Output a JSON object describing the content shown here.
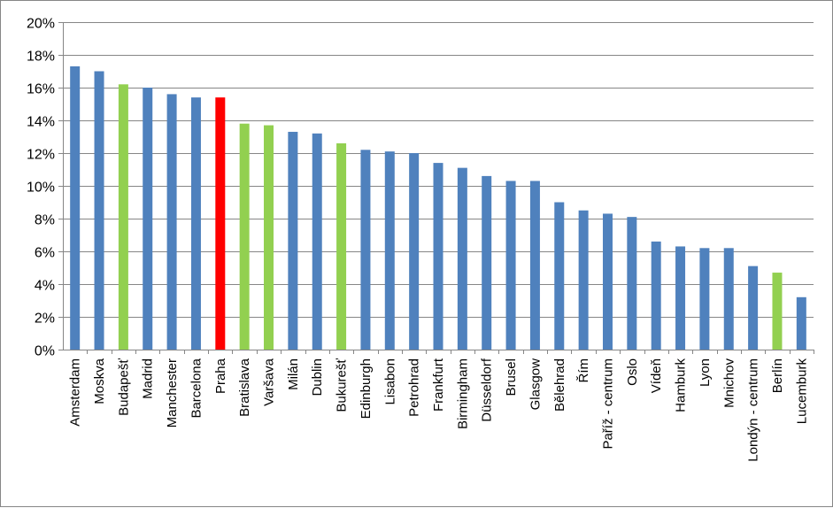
{
  "chart_data": {
    "type": "bar",
    "title": "",
    "xlabel": "",
    "ylabel": "",
    "ylim": [
      0,
      20
    ],
    "y_tick_step": 2,
    "y_tick_format": "percent",
    "grid": true,
    "legend": "none",
    "categories": [
      "Amsterdam",
      "Moskva",
      "Budapešť",
      "Madrid",
      "Manchester",
      "Barcelona",
      "Praha",
      "Bratislava",
      "Varšava",
      "Milán",
      "Dublin",
      "Bukurešť",
      "Edinburgh",
      "Lisabon",
      "Petrohrad",
      "Frankfurt",
      "Birmingham",
      "Düsseldorf",
      "Brusel",
      "Glasgow",
      "Bělehrad",
      "Řím",
      "Paříž - centrum",
      "Oslo",
      "Vídeň",
      "Hamburk",
      "Lyon",
      "Mnichov",
      "Londýn - centrum",
      "Berlín",
      "Lucemburk"
    ],
    "values": [
      17.3,
      17.0,
      16.2,
      16.0,
      15.6,
      15.4,
      15.4,
      13.8,
      13.7,
      13.3,
      13.2,
      12.6,
      12.2,
      12.1,
      12.0,
      11.4,
      11.1,
      10.6,
      10.3,
      10.3,
      9.0,
      8.5,
      8.3,
      8.1,
      6.6,
      6.3,
      6.2,
      6.2,
      5.1,
      4.7,
      3.2
    ],
    "bar_colors": [
      "#4F81BD",
      "#4F81BD",
      "#92D050",
      "#4F81BD",
      "#4F81BD",
      "#4F81BD",
      "#FF0000",
      "#92D050",
      "#92D050",
      "#4F81BD",
      "#4F81BD",
      "#92D050",
      "#4F81BD",
      "#4F81BD",
      "#4F81BD",
      "#4F81BD",
      "#4F81BD",
      "#4F81BD",
      "#4F81BD",
      "#4F81BD",
      "#4F81BD",
      "#4F81BD",
      "#4F81BD",
      "#4F81BD",
      "#4F81BD",
      "#4F81BD",
      "#4F81BD",
      "#4F81BD",
      "#4F81BD",
      "#92D050",
      "#4F81BD"
    ],
    "colors": {
      "default": "#4F81BD",
      "highlight": "#FF0000",
      "group": "#92D050",
      "grid": "#868686"
    }
  }
}
